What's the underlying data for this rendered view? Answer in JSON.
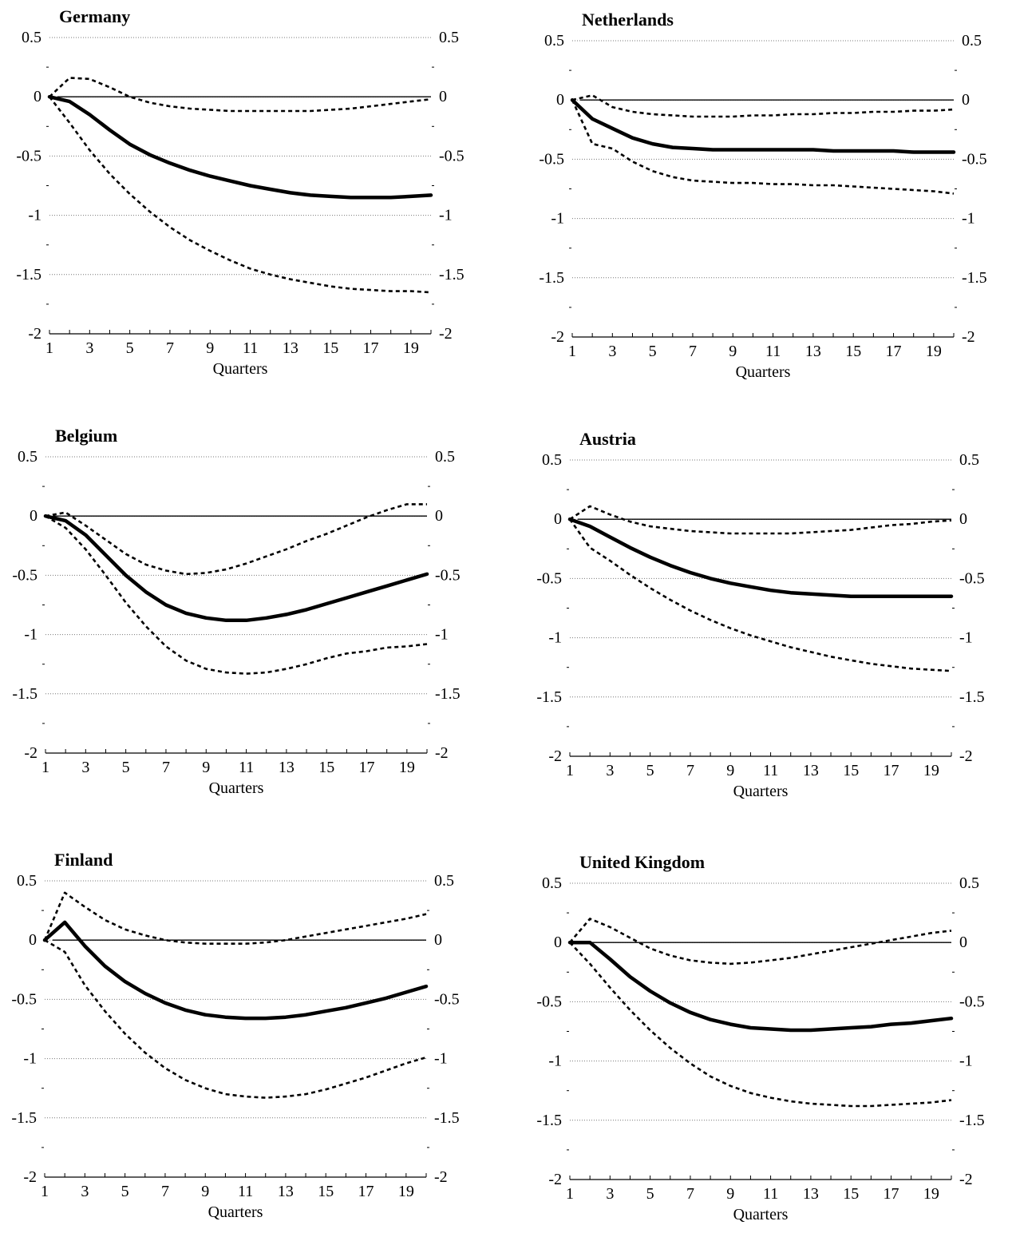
{
  "x_axis_label": "Quarters",
  "chart_data": [
    {
      "type": "line",
      "title": "Germany",
      "xlabel": "Quarters",
      "ylim": [
        -2,
        0.5
      ],
      "x": [
        1,
        2,
        3,
        4,
        5,
        6,
        7,
        8,
        9,
        10,
        11,
        12,
        13,
        14,
        15,
        16,
        17,
        18,
        19,
        20
      ],
      "xticks": [
        1,
        3,
        5,
        7,
        9,
        11,
        13,
        15,
        17,
        19
      ],
      "yticks": [
        0.5,
        0,
        -0.5,
        -1,
        -1.5,
        -2
      ],
      "series": [
        {
          "style": "solid",
          "values": [
            0,
            -0.04,
            -0.15,
            -0.28,
            -0.4,
            -0.49,
            -0.56,
            -0.62,
            -0.67,
            -0.71,
            -0.75,
            -0.78,
            -0.81,
            -0.83,
            -0.84,
            -0.85,
            -0.85,
            -0.85,
            -0.84,
            -0.83
          ]
        },
        {
          "style": "dashed",
          "values": [
            0,
            0.16,
            0.15,
            0.08,
            0.0,
            -0.05,
            -0.08,
            -0.1,
            -0.11,
            -0.12,
            -0.12,
            -0.12,
            -0.12,
            -0.12,
            -0.11,
            -0.1,
            -0.08,
            -0.06,
            -0.04,
            -0.02
          ]
        },
        {
          "style": "dashed",
          "values": [
            0,
            -0.22,
            -0.45,
            -0.65,
            -0.82,
            -0.97,
            -1.1,
            -1.21,
            -1.3,
            -1.38,
            -1.45,
            -1.5,
            -1.54,
            -1.57,
            -1.6,
            -1.62,
            -1.63,
            -1.64,
            -1.64,
            -1.65
          ]
        }
      ]
    },
    {
      "type": "line",
      "title": "Netherlands",
      "xlabel": "Quarters",
      "ylim": [
        -2,
        0.5
      ],
      "x": [
        1,
        2,
        3,
        4,
        5,
        6,
        7,
        8,
        9,
        10,
        11,
        12,
        13,
        14,
        15,
        16,
        17,
        18,
        19,
        20
      ],
      "xticks": [
        1,
        3,
        5,
        7,
        9,
        11,
        13,
        15,
        17,
        19
      ],
      "yticks": [
        0.5,
        0,
        -0.5,
        -1,
        -1.5,
        -2
      ],
      "series": [
        {
          "style": "solid",
          "values": [
            0,
            -0.16,
            -0.24,
            -0.32,
            -0.37,
            -0.4,
            -0.41,
            -0.42,
            -0.42,
            -0.42,
            -0.42,
            -0.42,
            -0.42,
            -0.43,
            -0.43,
            -0.43,
            -0.43,
            -0.44,
            -0.44,
            -0.44
          ]
        },
        {
          "style": "dashed",
          "values": [
            0,
            0.04,
            -0.06,
            -0.1,
            -0.12,
            -0.13,
            -0.14,
            -0.14,
            -0.14,
            -0.13,
            -0.13,
            -0.12,
            -0.12,
            -0.11,
            -0.11,
            -0.1,
            -0.1,
            -0.09,
            -0.09,
            -0.08
          ]
        },
        {
          "style": "dashed",
          "values": [
            0,
            -0.37,
            -0.41,
            -0.52,
            -0.6,
            -0.65,
            -0.68,
            -0.69,
            -0.7,
            -0.7,
            -0.71,
            -0.71,
            -0.72,
            -0.72,
            -0.73,
            -0.74,
            -0.75,
            -0.76,
            -0.77,
            -0.79
          ]
        }
      ]
    },
    {
      "type": "line",
      "title": "Belgium",
      "xlabel": "Quarters",
      "ylim": [
        -2,
        0.5
      ],
      "x": [
        1,
        2,
        3,
        4,
        5,
        6,
        7,
        8,
        9,
        10,
        11,
        12,
        13,
        14,
        15,
        16,
        17,
        18,
        19,
        20
      ],
      "xticks": [
        1,
        3,
        5,
        7,
        9,
        11,
        13,
        15,
        17,
        19
      ],
      "yticks": [
        0.5,
        0,
        -0.5,
        -1,
        -1.5,
        -2
      ],
      "series": [
        {
          "style": "solid",
          "values": [
            0,
            -0.04,
            -0.16,
            -0.33,
            -0.5,
            -0.64,
            -0.75,
            -0.82,
            -0.86,
            -0.88,
            -0.88,
            -0.86,
            -0.83,
            -0.79,
            -0.74,
            -0.69,
            -0.64,
            -0.59,
            -0.54,
            -0.49
          ]
        },
        {
          "style": "dashed",
          "values": [
            0,
            0.03,
            -0.08,
            -0.2,
            -0.32,
            -0.41,
            -0.46,
            -0.49,
            -0.48,
            -0.45,
            -0.4,
            -0.34,
            -0.28,
            -0.21,
            -0.15,
            -0.08,
            -0.01,
            0.05,
            0.1,
            0.1
          ]
        },
        {
          "style": "dashed",
          "values": [
            0,
            -0.1,
            -0.28,
            -0.5,
            -0.73,
            -0.93,
            -1.1,
            -1.22,
            -1.29,
            -1.32,
            -1.33,
            -1.32,
            -1.29,
            -1.25,
            -1.2,
            -1.16,
            -1.14,
            -1.11,
            -1.1,
            -1.08
          ]
        }
      ]
    },
    {
      "type": "line",
      "title": "Austria",
      "xlabel": "Quarters",
      "ylim": [
        -2,
        0.5
      ],
      "x": [
        1,
        2,
        3,
        4,
        5,
        6,
        7,
        8,
        9,
        10,
        11,
        12,
        13,
        14,
        15,
        16,
        17,
        18,
        19,
        20
      ],
      "xticks": [
        1,
        3,
        5,
        7,
        9,
        11,
        13,
        15,
        17,
        19
      ],
      "yticks": [
        0.5,
        0,
        -0.5,
        -1,
        -1.5,
        -2
      ],
      "series": [
        {
          "style": "solid",
          "values": [
            0,
            -0.06,
            -0.15,
            -0.24,
            -0.32,
            -0.39,
            -0.45,
            -0.5,
            -0.54,
            -0.57,
            -0.6,
            -0.62,
            -0.63,
            -0.64,
            -0.65,
            -0.65,
            -0.65,
            -0.65,
            -0.65,
            -0.65
          ]
        },
        {
          "style": "dashed",
          "values": [
            0,
            0.11,
            0.04,
            -0.02,
            -0.06,
            -0.08,
            -0.1,
            -0.11,
            -0.12,
            -0.12,
            -0.12,
            -0.12,
            -0.11,
            -0.1,
            -0.09,
            -0.07,
            -0.05,
            -0.04,
            -0.02,
            -0.01
          ]
        },
        {
          "style": "dashed",
          "values": [
            0,
            -0.24,
            -0.35,
            -0.47,
            -0.58,
            -0.68,
            -0.77,
            -0.85,
            -0.92,
            -0.98,
            -1.03,
            -1.08,
            -1.12,
            -1.16,
            -1.19,
            -1.22,
            -1.24,
            -1.26,
            -1.27,
            -1.28
          ]
        }
      ]
    },
    {
      "type": "line",
      "title": "Finland",
      "xlabel": "Quarters",
      "ylim": [
        -2,
        0.5
      ],
      "x": [
        1,
        2,
        3,
        4,
        5,
        6,
        7,
        8,
        9,
        10,
        11,
        12,
        13,
        14,
        15,
        16,
        17,
        18,
        19,
        20
      ],
      "xticks": [
        1,
        3,
        5,
        7,
        9,
        11,
        13,
        15,
        17,
        19
      ],
      "yticks": [
        0.5,
        0,
        -0.5,
        -1,
        -1.5,
        -2
      ],
      "series": [
        {
          "style": "solid",
          "values": [
            0,
            0.15,
            -0.05,
            -0.22,
            -0.35,
            -0.45,
            -0.53,
            -0.59,
            -0.63,
            -0.65,
            -0.66,
            -0.66,
            -0.65,
            -0.63,
            -0.6,
            -0.57,
            -0.53,
            -0.49,
            -0.44,
            -0.39
          ]
        },
        {
          "style": "dashed",
          "values": [
            0,
            0.4,
            0.28,
            0.17,
            0.09,
            0.04,
            0.0,
            -0.02,
            -0.03,
            -0.03,
            -0.03,
            -0.02,
            0.0,
            0.03,
            0.06,
            0.09,
            0.12,
            0.15,
            0.18,
            0.22
          ]
        },
        {
          "style": "dashed",
          "values": [
            0,
            -0.1,
            -0.38,
            -0.6,
            -0.79,
            -0.95,
            -1.08,
            -1.18,
            -1.25,
            -1.3,
            -1.32,
            -1.33,
            -1.32,
            -1.3,
            -1.26,
            -1.21,
            -1.16,
            -1.1,
            -1.04,
            -0.99
          ]
        }
      ]
    },
    {
      "type": "line",
      "title": "United Kingdom",
      "xlabel": "Quarters",
      "ylim": [
        -2,
        0.5
      ],
      "x": [
        1,
        2,
        3,
        4,
        5,
        6,
        7,
        8,
        9,
        10,
        11,
        12,
        13,
        14,
        15,
        16,
        17,
        18,
        19,
        20
      ],
      "xticks": [
        1,
        3,
        5,
        7,
        9,
        11,
        13,
        15,
        17,
        19
      ],
      "yticks": [
        0.5,
        0,
        -0.5,
        -1,
        -1.5,
        -2
      ],
      "series": [
        {
          "style": "solid",
          "values": [
            0,
            0,
            -0.14,
            -0.29,
            -0.41,
            -0.51,
            -0.59,
            -0.65,
            -0.69,
            -0.72,
            -0.73,
            -0.74,
            -0.74,
            -0.73,
            -0.72,
            -0.71,
            -0.69,
            -0.68,
            -0.66,
            -0.64
          ]
        },
        {
          "style": "dashed",
          "values": [
            0,
            0.2,
            0.13,
            0.04,
            -0.05,
            -0.11,
            -0.15,
            -0.17,
            -0.18,
            -0.17,
            -0.15,
            -0.13,
            -0.1,
            -0.07,
            -0.04,
            -0.01,
            0.02,
            0.05,
            0.08,
            0.1
          ]
        },
        {
          "style": "dashed",
          "values": [
            0,
            -0.18,
            -0.38,
            -0.57,
            -0.74,
            -0.89,
            -1.02,
            -1.13,
            -1.21,
            -1.27,
            -1.31,
            -1.34,
            -1.36,
            -1.37,
            -1.38,
            -1.38,
            -1.37,
            -1.36,
            -1.35,
            -1.33
          ]
        }
      ]
    }
  ]
}
